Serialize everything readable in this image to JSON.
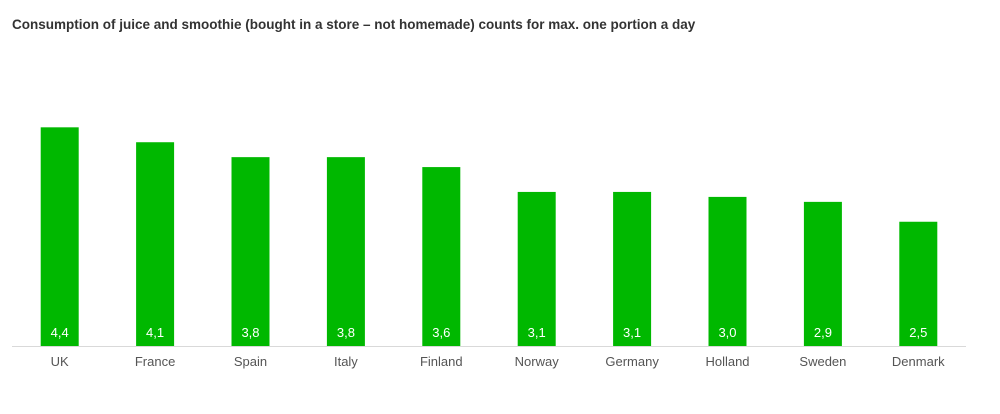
{
  "chart_data": {
    "type": "bar",
    "title": "Consumption of juice and smoothie (bought in a store – not homemade) counts for max. one portion a day",
    "categories": [
      "UK",
      "France",
      "Spain",
      "Italy",
      "Finland",
      "Norway",
      "Germany",
      "Holland",
      "Sweden",
      "Denmark"
    ],
    "values": [
      4.4,
      4.1,
      3.8,
      3.8,
      3.6,
      3.1,
      3.1,
      3.0,
      2.9,
      2.5
    ],
    "value_labels": [
      "4,4",
      "4,1",
      "3,8",
      "3,8",
      "3,6",
      "3,1",
      "3,1",
      "3,0",
      "2,9",
      "2,5"
    ],
    "xlabel": "",
    "ylabel": "",
    "ylim": [
      0,
      5
    ],
    "grid": false,
    "legend": "none",
    "colors": {
      "bar": "#00b800",
      "axis": "#d9d9d9",
      "category_text": "#555555",
      "value_text": "#ffffff",
      "title_text": "#333333"
    }
  }
}
